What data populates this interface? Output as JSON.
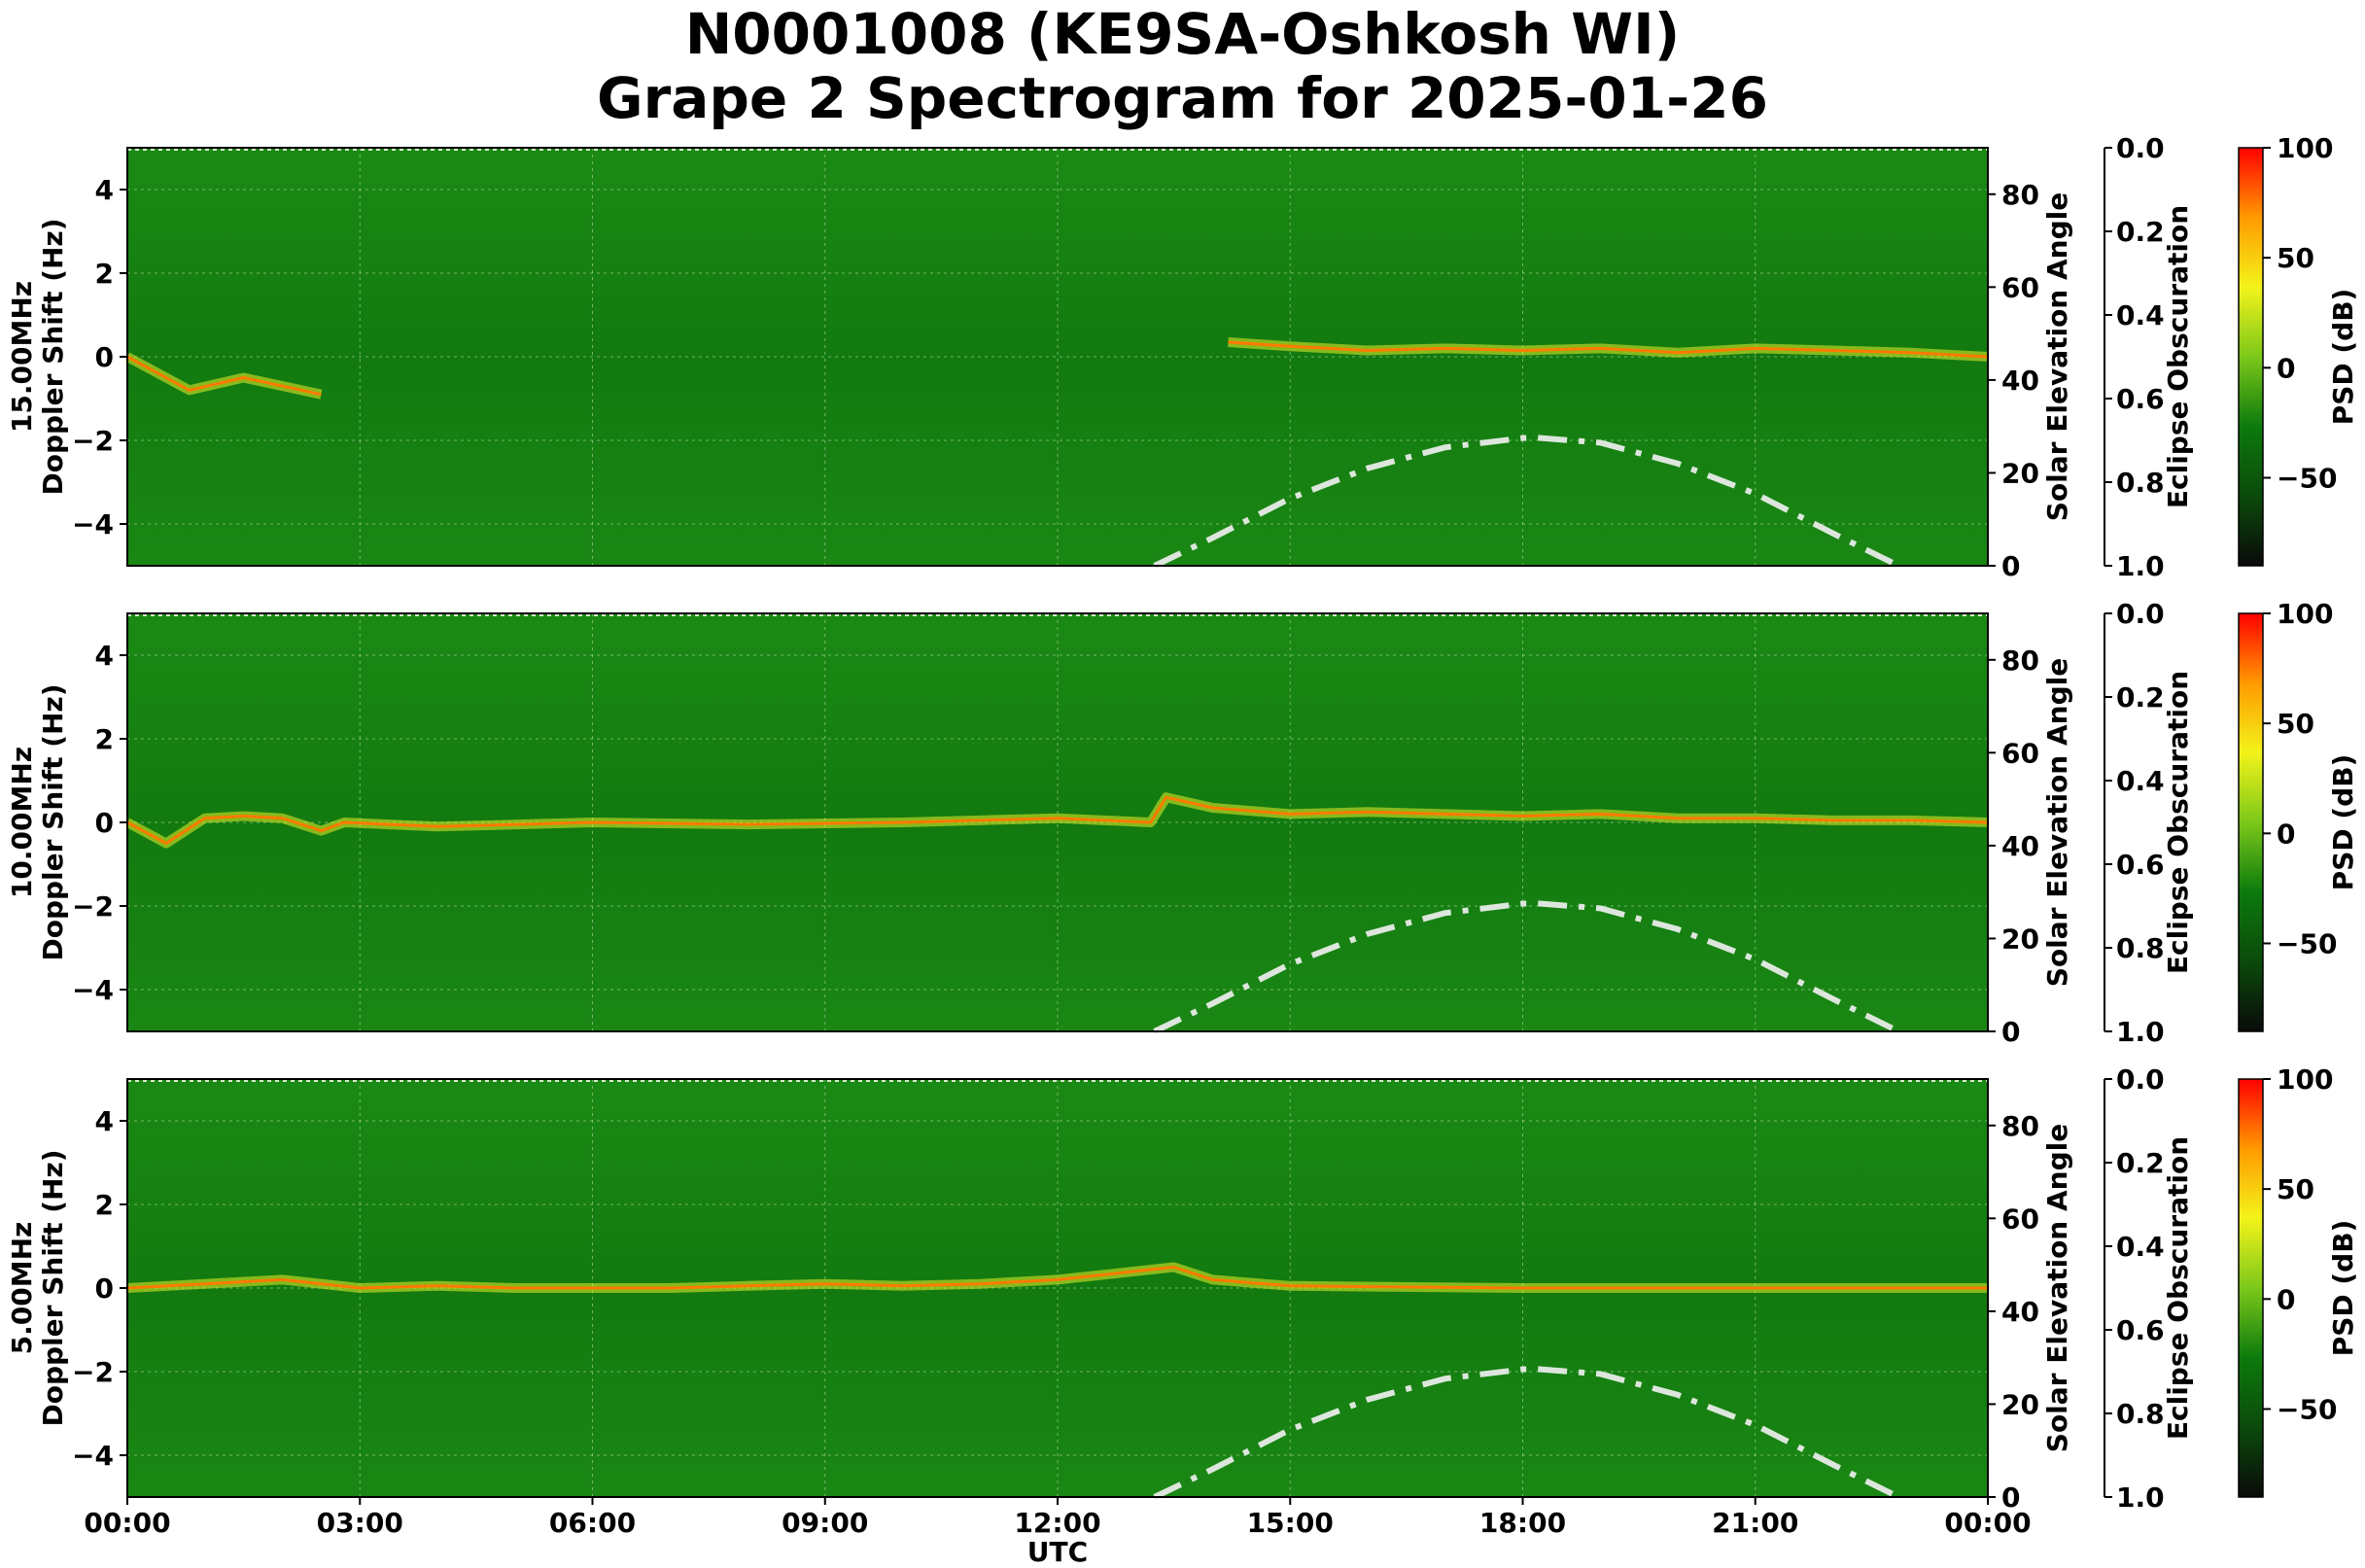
{
  "title_line1": "N0001008 (KE9SA-Oshkosh WI)",
  "title_line2": "Grape 2 Spectrogram for 2025-01-26",
  "chart_data": {
    "type": "heatmap",
    "xlabel": "UTC",
    "x_ticks": [
      "00:00",
      "03:00",
      "06:00",
      "09:00",
      "12:00",
      "15:00",
      "18:00",
      "21:00",
      "00:00"
    ],
    "x_range_hours": [
      0,
      24
    ],
    "y_ylabel": "Doppler Shift (Hz)",
    "ylim": [
      -5,
      5
    ],
    "y_ticks": [
      4,
      2,
      0,
      -2,
      -4
    ],
    "y_tick_labels": [
      "4",
      "2",
      "0",
      "−2",
      "−4"
    ],
    "right_axis_1": {
      "label": "Solar Elevation Angle",
      "range": [
        0,
        90
      ],
      "ticks": [
        0,
        20,
        40,
        60,
        80
      ]
    },
    "right_axis_2": {
      "label": "Eclipse Obscuration",
      "range": [
        0.0,
        1.0
      ],
      "inverted": true,
      "ticks": [
        "0.0",
        "0.2",
        "0.4",
        "0.6",
        "0.8",
        "1.0"
      ]
    },
    "colorbar": {
      "label": "PSD (dB)",
      "range": [
        -90,
        100
      ],
      "ticks": [
        100,
        50,
        0,
        -50
      ],
      "tick_labels": [
        "100",
        "50",
        "0",
        "−50"
      ],
      "colors": [
        "#0a0a0a",
        "#0b4a0b",
        "#0c7a0c",
        "#7cc81a",
        "#f3f31a",
        "#ff9a00",
        "#ff0000"
      ]
    },
    "grid": true,
    "solar_elevation_curve": {
      "style": "dash-dot",
      "color": "#dde6dd",
      "x_hours": [
        13.25,
        14,
        15,
        16,
        17,
        18,
        18.15,
        19,
        20,
        21,
        22,
        22.85
      ],
      "elevation_deg": [
        0,
        6,
        14.5,
        21,
        25.5,
        27.5,
        27.6,
        26.5,
        22,
        15.5,
        7,
        0
      ]
    },
    "panels": [
      {
        "freq_label": "15.00MHz",
        "carrier_trace_hours": [
          0,
          0.8,
          1.5,
          2.5,
          4,
          7,
          10,
          13.9,
          14.2,
          15,
          16,
          17,
          18,
          19,
          20,
          21,
          22,
          23,
          24
        ],
        "carrier_trace_hz": [
          0,
          -0.8,
          -0.5,
          -0.9,
          null,
          null,
          null,
          null,
          0.35,
          0.25,
          0.15,
          0.2,
          0.15,
          0.2,
          0.1,
          0.2,
          0.15,
          0.1,
          0.0
        ]
      },
      {
        "freq_label": "10.00MHz",
        "carrier_trace_hours": [
          0,
          0.5,
          1,
          1.5,
          2,
          2.5,
          2.8,
          4,
          6,
          8,
          10,
          12,
          13.2,
          13.4,
          14,
          15,
          16,
          17,
          18,
          19,
          20,
          21,
          22,
          23,
          24
        ],
        "carrier_trace_hz": [
          0,
          -0.5,
          0.1,
          0.15,
          0.1,
          -0.2,
          0.0,
          -0.1,
          0.0,
          -0.05,
          0.0,
          0.1,
          0.0,
          0.6,
          0.35,
          0.2,
          0.25,
          0.2,
          0.15,
          0.2,
          0.1,
          0.1,
          0.05,
          0.05,
          0.0
        ]
      },
      {
        "freq_label": "5.00MHz",
        "carrier_trace_hours": [
          0,
          1,
          2,
          3,
          4,
          5,
          6,
          7,
          8,
          9,
          10,
          11,
          12,
          12.5,
          13,
          13.5,
          14,
          15,
          18,
          21,
          24
        ],
        "carrier_trace_hz": [
          0,
          0.1,
          0.2,
          0.0,
          0.05,
          0.0,
          0.0,
          0.0,
          0.05,
          0.1,
          0.05,
          0.1,
          0.2,
          0.3,
          0.4,
          0.5,
          0.2,
          0.05,
          0.0,
          0.0,
          0.0
        ]
      }
    ]
  }
}
